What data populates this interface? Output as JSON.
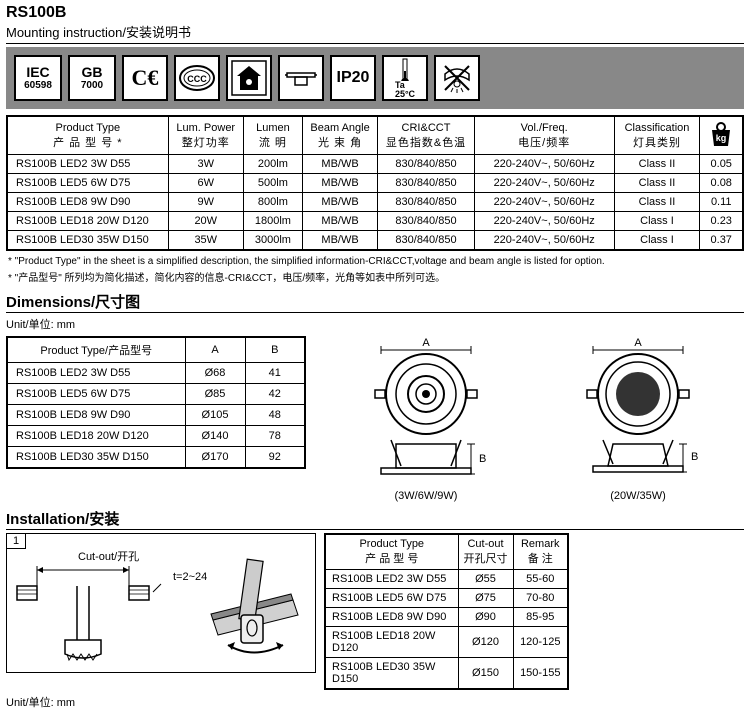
{
  "header": {
    "title": "RS100B",
    "subtitle": "Mounting instruction/安装说明书"
  },
  "certifications": {
    "iec": {
      "l1": "IEC",
      "l2": "60598"
    },
    "gb": {
      "l1": "GB",
      "l2": "7000"
    },
    "ce": "CE",
    "ip": "IP20",
    "ta": "Ta 25°C"
  },
  "mainTable": {
    "headers": {
      "productType": {
        "en": "Product Type",
        "cn": "产 品 型 号 *"
      },
      "lumPower": {
        "en": "Lum. Power",
        "cn": "整灯功率"
      },
      "lumen": {
        "en": "Lumen",
        "cn": "流 明"
      },
      "beamAngle": {
        "en": "Beam Angle",
        "cn": "光 束 角"
      },
      "cricct": {
        "en": "CRI&CCT",
        "cn": "显色指数&色温"
      },
      "volfreq": {
        "en": "Vol./Freq.",
        "cn": "电压/频率"
      },
      "class": {
        "en": "Classification",
        "cn": "灯具类别"
      },
      "kg": "kg"
    },
    "rows": [
      {
        "pt": "RS100B LED2 3W D55",
        "lp": "3W",
        "lm": "200lm",
        "ba": "MB/WB",
        "cc": "830/840/850",
        "vf": "220-240V~, 50/60Hz",
        "cl": "Class II",
        "kg": "0.05"
      },
      {
        "pt": "RS100B LED5 6W D75",
        "lp": "6W",
        "lm": "500lm",
        "ba": "MB/WB",
        "cc": "830/840/850",
        "vf": "220-240V~, 50/60Hz",
        "cl": "Class II",
        "kg": "0.08"
      },
      {
        "pt": "RS100B LED8 9W D90",
        "lp": "9W",
        "lm": "800lm",
        "ba": "MB/WB",
        "cc": "830/840/850",
        "vf": "220-240V~, 50/60Hz",
        "cl": "Class II",
        "kg": "0.11"
      },
      {
        "pt": "RS100B LED18 20W D120",
        "lp": "20W",
        "lm": "1800lm",
        "ba": "MB/WB",
        "cc": "830/840/850",
        "vf": "220-240V~, 50/60Hz",
        "cl": "Class I",
        "kg": "0.23"
      },
      {
        "pt": "RS100B LED30 35W D150",
        "lp": "35W",
        "lm": "3000lm",
        "ba": "MB/WB",
        "cc": "830/840/850",
        "vf": "220-240V~, 50/60Hz",
        "cl": "Class I",
        "kg": "0.37"
      }
    ],
    "footnote_en": "* \"Product Type\" in the sheet is a simplified description, the simplified information-CRI&CCT,voltage and beam angle is listed for option.",
    "footnote_cn": "* \"产品型号\" 所列均为简化描述，简化内容的信息-CRI&CCT，电压/频率，光角等如表中所列可选。"
  },
  "dimensions": {
    "section": "Dimensions/尺寸图",
    "unit": "Unit/单位: mm",
    "headers": {
      "pt": "Product Type/产品型号",
      "a": "A",
      "b": "B"
    },
    "rows": [
      {
        "pt": "RS100B LED2 3W D55",
        "a": "Ø68",
        "b": "41"
      },
      {
        "pt": "RS100B LED5 6W D75",
        "a": "Ø85",
        "b": "42"
      },
      {
        "pt": "RS100B LED8 9W D90",
        "a": "Ø105",
        "b": "48"
      },
      {
        "pt": "RS100B LED18 20W D120",
        "a": "Ø140",
        "b": "78"
      },
      {
        "pt": "RS100B LED30 35W D150",
        "a": "Ø170",
        "b": "92"
      }
    ],
    "diagramLabels": {
      "a": "A",
      "b": "B",
      "left": "(3W/6W/9W)",
      "right": "(20W/35W)"
    }
  },
  "installation": {
    "section": "Installation/安装",
    "step": "1",
    "cutout": "Cut-out/开孔",
    "thickness": "t=2~24",
    "unit": "Unit/单位: mm",
    "table": {
      "headers": {
        "pt": {
          "en": "Product Type",
          "cn": "产 品 型 号"
        },
        "cutout": {
          "en": "Cut-out",
          "cn": "开孔尺寸"
        },
        "remark": {
          "en": "Remark",
          "cn": "备  注"
        }
      },
      "rows": [
        {
          "pt": "RS100B LED2 3W D55",
          "co": "Ø55",
          "rm": "55-60"
        },
        {
          "pt": "RS100B LED5 6W D75",
          "co": "Ø75",
          "rm": "70-80"
        },
        {
          "pt": "RS100B LED8 9W D90",
          "co": "Ø90",
          "rm": "85-95"
        },
        {
          "pt": "RS100B LED18 20W D120",
          "co": "Ø120",
          "rm": "120-125"
        },
        {
          "pt": "RS100B LED30 35W D150",
          "co": "Ø150",
          "rm": "150-155"
        }
      ]
    }
  },
  "colors": {
    "gray": "#888888",
    "black": "#000000"
  }
}
